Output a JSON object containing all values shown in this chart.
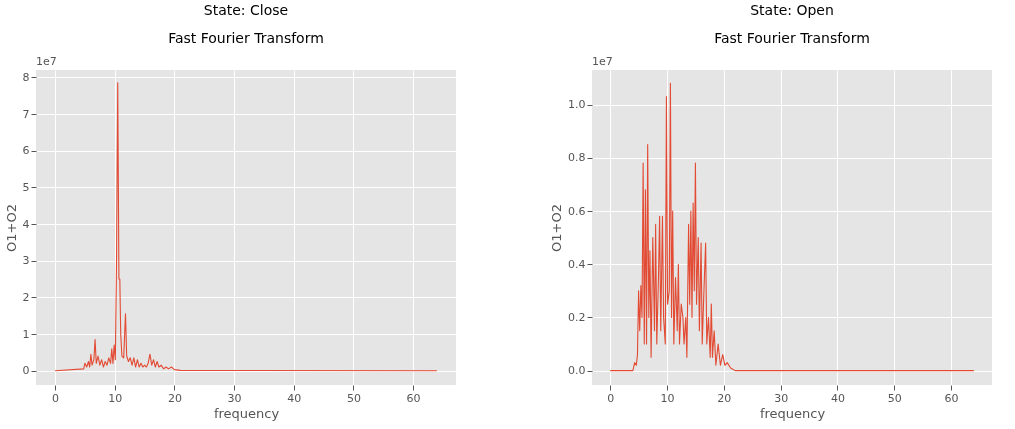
{
  "chart_data": [
    {
      "type": "line",
      "title": "State: Close",
      "subtitle": "Fast Fourier Transform",
      "xlabel": "frequency",
      "ylabel": "O1+O2",
      "annotations": [
        "1e7"
      ],
      "xlim": [
        -3.2,
        67.2
      ],
      "xticks": [
        0,
        10,
        20,
        30,
        40,
        50,
        60
      ],
      "ylim": [
        -0.39,
        8.2
      ],
      "yticks": [
        0,
        1,
        2,
        3,
        4,
        5,
        6,
        7,
        8
      ],
      "grid": true,
      "series": [
        {
          "color": "#e24a33",
          "x": [
            0,
            4.8,
            5,
            5.3,
            5.6,
            5.8,
            6.0,
            6.2,
            6.5,
            6.7,
            6.9,
            7.2,
            7.5,
            7.8,
            8.1,
            8.4,
            8.7,
            9.0,
            9.3,
            9.5,
            9.7,
            9.9,
            10.1,
            10.3,
            10.5,
            10.7,
            10.85,
            11.0,
            11.2,
            11.5,
            11.8,
            12.0,
            12.3,
            12.6,
            12.9,
            13.2,
            13.5,
            13.8,
            14.1,
            14.4,
            14.7,
            15.0,
            15.3,
            15.6,
            15.9,
            16.2,
            16.5,
            16.8,
            17.1,
            17.4,
            17.8,
            18.2,
            18.6,
            19.0,
            19.5,
            20,
            21,
            64
          ],
          "values": [
            0,
            0.05,
            0.2,
            0.1,
            0.25,
            0.1,
            0.45,
            0.15,
            0.3,
            0.85,
            0.2,
            0.4,
            0.15,
            0.3,
            0.1,
            0.25,
            0.15,
            0.35,
            0.2,
            0.6,
            0.2,
            0.7,
            0.3,
            3.0,
            7.85,
            2.5,
            2.5,
            1.0,
            0.4,
            0.35,
            1.55,
            0.4,
            0.25,
            0.35,
            0.15,
            0.35,
            0.1,
            0.3,
            0.1,
            0.2,
            0.1,
            0.15,
            0.1,
            0.2,
            0.45,
            0.15,
            0.3,
            0.1,
            0.25,
            0.1,
            0.15,
            0.05,
            0.1,
            0.05,
            0.1,
            0.03,
            0.01,
            0
          ]
        }
      ]
    },
    {
      "type": "line",
      "title": "State: Open",
      "subtitle": "Fast Fourier Transform",
      "xlabel": "frequency",
      "ylabel": "O1+O2",
      "annotations": [
        "1e7"
      ],
      "xlim": [
        -3.2,
        67.2
      ],
      "xticks": [
        0,
        10,
        20,
        30,
        40,
        50,
        60
      ],
      "ylim": [
        -0.054,
        1.13
      ],
      "yticks": [
        {
          "value": 0,
          "label": "0.0"
        },
        {
          "value": 0.2,
          "label": "0.2"
        },
        {
          "value": 0.4,
          "label": "0.4"
        },
        {
          "value": 0.6,
          "label": "0.6"
        },
        {
          "value": 0.8,
          "label": "0.8"
        },
        {
          "value": 1,
          "label": "1.0"
        }
      ],
      "grid": true,
      "series": [
        {
          "color": "#e24a33",
          "x": [
            0,
            4.0,
            4.3,
            4.6,
            4.8,
            5.0,
            5.2,
            5.4,
            5.6,
            5.8,
            6.0,
            6.2,
            6.4,
            6.6,
            6.8,
            7.0,
            7.2,
            7.5,
            7.8,
            8.0,
            8.2,
            8.5,
            8.7,
            8.9,
            9.2,
            9.4,
            9.7,
            9.9,
            10.1,
            10.4,
            10.6,
            10.8,
            11.0,
            11.2,
            11.5,
            11.8,
            12.0,
            12.2,
            12.5,
            12.8,
            13.0,
            13.3,
            13.5,
            13.8,
            14.0,
            14.2,
            14.4,
            14.6,
            14.8,
            15.0,
            15.2,
            15.5,
            15.7,
            16.0,
            16.2,
            16.5,
            16.8,
            17.0,
            17.3,
            17.6,
            17.8,
            18.0,
            18.3,
            18.6,
            19.0,
            19.4,
            19.8,
            20.2,
            20.6,
            21.2,
            22,
            64
          ],
          "values": [
            0,
            0,
            0.03,
            0.02,
            0.06,
            0.3,
            0.15,
            0.32,
            0.2,
            0.78,
            0.1,
            0.68,
            0.1,
            0.85,
            0.2,
            0.45,
            0.05,
            0.5,
            0.15,
            0.55,
            0.1,
            0.35,
            0.58,
            0.15,
            0.58,
            0.2,
            0.1,
            1.03,
            0.25,
            0.3,
            1.08,
            0.2,
            0.6,
            0.1,
            0.35,
            0.15,
            0.4,
            0.1,
            0.25,
            0.2,
            0.1,
            0.2,
            0.05,
            0.55,
            0.25,
            0.6,
            0.2,
            0.63,
            0.3,
            0.78,
            0.25,
            0.5,
            0.15,
            0.48,
            0.1,
            0.3,
            0.48,
            0.1,
            0.2,
            0.05,
            0.25,
            0.05,
            0.15,
            0.02,
            0.1,
            0.02,
            0.06,
            0.02,
            0.03,
            0.01,
            0,
            0
          ]
        }
      ]
    }
  ]
}
